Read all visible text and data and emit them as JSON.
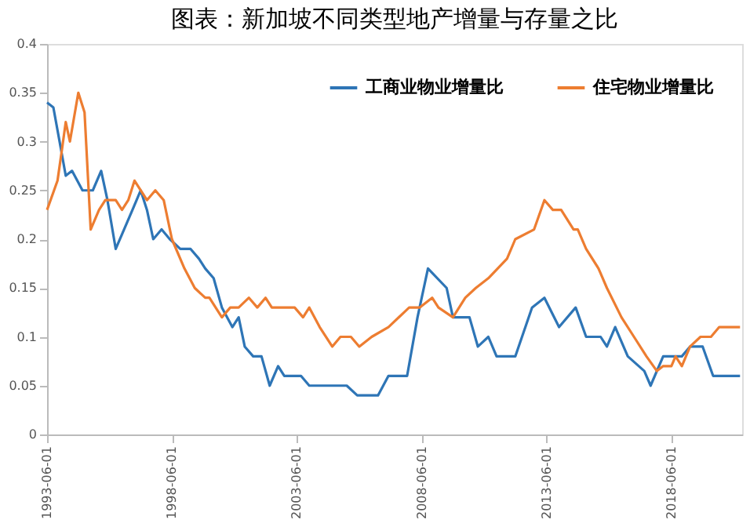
{
  "chart_data": {
    "type": "line",
    "title": "图表：新加坡不同类型地产增量与存量之比",
    "xlim": [
      "1993-06-01",
      "2021-04-01"
    ],
    "xticks": [
      "1993-06-01",
      "1998-06-01",
      "2003-06-01",
      "2008-06-01",
      "2013-06-01",
      "2018-06-01"
    ],
    "ylim": [
      0,
      0.4
    ],
    "yticks": [
      0,
      0.05,
      0.1,
      0.15,
      0.2,
      0.25,
      0.3,
      0.35,
      0.4
    ],
    "grid": false,
    "legend": "top right",
    "marker": "none",
    "line_style": "solid",
    "series": [
      {
        "name": "工商业物业增量比",
        "color": "#2e75b6",
        "x": [
          "1993-06",
          "1993-09",
          "1993-12",
          "1994-03",
          "1994-06",
          "1994-11",
          "1995-04",
          "1995-08",
          "1995-11",
          "1996-03",
          "1996-07",
          "1996-11",
          "1997-03",
          "1997-06",
          "1997-09",
          "1998-01",
          "1998-05",
          "1998-10",
          "1999-03",
          "1999-07",
          "1999-10",
          "2000-02",
          "2000-06",
          "2000-11",
          "2001-02",
          "2001-05",
          "2001-09",
          "2002-01",
          "2002-05",
          "2002-09",
          "2002-12",
          "2003-08",
          "2003-12",
          "2005-06",
          "2005-11",
          "2006-09",
          "2007-02",
          "2007-11",
          "2008-04",
          "2008-09",
          "2009-06",
          "2009-09",
          "2010-05",
          "2010-09",
          "2011-02",
          "2011-06",
          "2012-03",
          "2012-11",
          "2013-05",
          "2013-12",
          "2014-08",
          "2015-01",
          "2015-08",
          "2015-11",
          "2016-03",
          "2016-09",
          "2017-05",
          "2017-08",
          "2018-02",
          "2018-06",
          "2018-11",
          "2019-03",
          "2019-09",
          "2020-02",
          "2021-03"
        ],
        "values": [
          0.34,
          0.335,
          0.3,
          0.265,
          0.27,
          0.25,
          0.25,
          0.27,
          0.24,
          0.19,
          0.21,
          0.23,
          0.25,
          0.23,
          0.2,
          0.21,
          0.2,
          0.19,
          0.19,
          0.18,
          0.17,
          0.16,
          0.13,
          0.11,
          0.12,
          0.09,
          0.08,
          0.08,
          0.05,
          0.07,
          0.06,
          0.06,
          0.05,
          0.05,
          0.04,
          0.04,
          0.06,
          0.06,
          0.12,
          0.17,
          0.15,
          0.12,
          0.12,
          0.09,
          0.1,
          0.08,
          0.08,
          0.13,
          0.14,
          0.11,
          0.13,
          0.1,
          0.1,
          0.09,
          0.11,
          0.08,
          0.065,
          0.05,
          0.08,
          0.08,
          0.08,
          0.09,
          0.09,
          0.06,
          0.06
        ]
      },
      {
        "name": "住宅物业增量比",
        "color": "#ed7d31",
        "x": [
          "1993-06",
          "1993-11",
          "1994-01",
          "1994-03",
          "1994-05",
          "1994-09",
          "1994-12",
          "1995-03",
          "1995-07",
          "1995-10",
          "1996-03",
          "1996-06",
          "1996-09",
          "1996-12",
          "1997-06",
          "1997-10",
          "1998-02",
          "1998-06",
          "1998-12",
          "1999-05",
          "1999-10",
          "1999-12",
          "2000-06",
          "2000-10",
          "2001-02",
          "2001-07",
          "2001-11",
          "2002-03",
          "2002-06",
          "2003-05",
          "2003-09",
          "2003-12",
          "2004-05",
          "2004-11",
          "2005-03",
          "2005-08",
          "2005-12",
          "2006-06",
          "2007-02",
          "2007-12",
          "2008-05",
          "2008-11",
          "2009-02",
          "2009-09",
          "2010-03",
          "2010-08",
          "2011-02",
          "2011-11",
          "2012-03",
          "2012-12",
          "2013-05",
          "2013-09",
          "2014-01",
          "2014-07",
          "2014-09",
          "2015-01",
          "2015-07",
          "2015-11",
          "2016-06",
          "2016-12",
          "2017-06",
          "2017-11",
          "2018-02",
          "2018-06",
          "2018-08",
          "2018-11",
          "2019-03",
          "2019-08",
          "2020-01",
          "2020-05",
          "2021-03"
        ],
        "values": [
          0.23,
          0.26,
          0.29,
          0.32,
          0.3,
          0.35,
          0.33,
          0.21,
          0.23,
          0.24,
          0.24,
          0.23,
          0.24,
          0.26,
          0.24,
          0.25,
          0.24,
          0.2,
          0.17,
          0.15,
          0.14,
          0.14,
          0.12,
          0.13,
          0.13,
          0.14,
          0.13,
          0.14,
          0.13,
          0.13,
          0.12,
          0.13,
          0.11,
          0.09,
          0.1,
          0.1,
          0.09,
          0.1,
          0.11,
          0.13,
          0.13,
          0.14,
          0.13,
          0.12,
          0.14,
          0.15,
          0.16,
          0.18,
          0.2,
          0.21,
          0.24,
          0.23,
          0.23,
          0.21,
          0.21,
          0.19,
          0.17,
          0.15,
          0.12,
          0.1,
          0.08,
          0.065,
          0.07,
          0.07,
          0.08,
          0.07,
          0.09,
          0.1,
          0.1,
          0.11,
          0.11
        ]
      }
    ]
  }
}
